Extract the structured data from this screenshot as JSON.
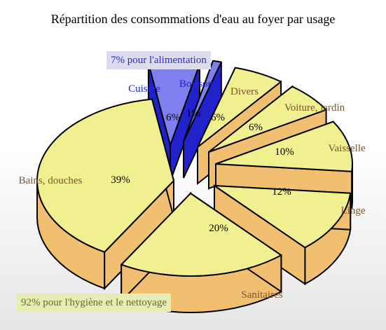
{
  "title": "Répartition des consommations d'eau au foyer par usage",
  "annotations": {
    "food": "7% pour l'alimentation",
    "hygiene": "92% pour l'hygiène et le nettoyage"
  },
  "colors": {
    "food_top": "#7f7ff0",
    "food_side": "#2222cc",
    "hygiene_top": "#f0f090",
    "hygiene_side": "#f0c070",
    "food_label": "#2222cc",
    "hygiene_label": "#7a5530"
  },
  "chart_data": {
    "type": "pie",
    "title": "Répartition des consommations d'eau au foyer par usage",
    "slices": [
      {
        "label": "Cuisine",
        "value": 6,
        "display": "6%",
        "group": "food"
      },
      {
        "label": "Boisson",
        "value": 1,
        "display": "1%",
        "group": "food"
      },
      {
        "label": "Divers",
        "value": 6,
        "display": "6%",
        "group": "hygiene"
      },
      {
        "label": "Voiture, jardin",
        "value": 6,
        "display": "6%",
        "group": "hygiene"
      },
      {
        "label": "Vaisselle",
        "value": 10,
        "display": "10%",
        "group": "hygiene"
      },
      {
        "label": "Linge",
        "value": 12,
        "display": "12%",
        "group": "hygiene"
      },
      {
        "label": "Sanitaires",
        "value": 20,
        "display": "20%",
        "group": "hygiene"
      },
      {
        "label": "Bains, douches",
        "value": 39,
        "display": "39%",
        "group": "hygiene"
      }
    ]
  }
}
